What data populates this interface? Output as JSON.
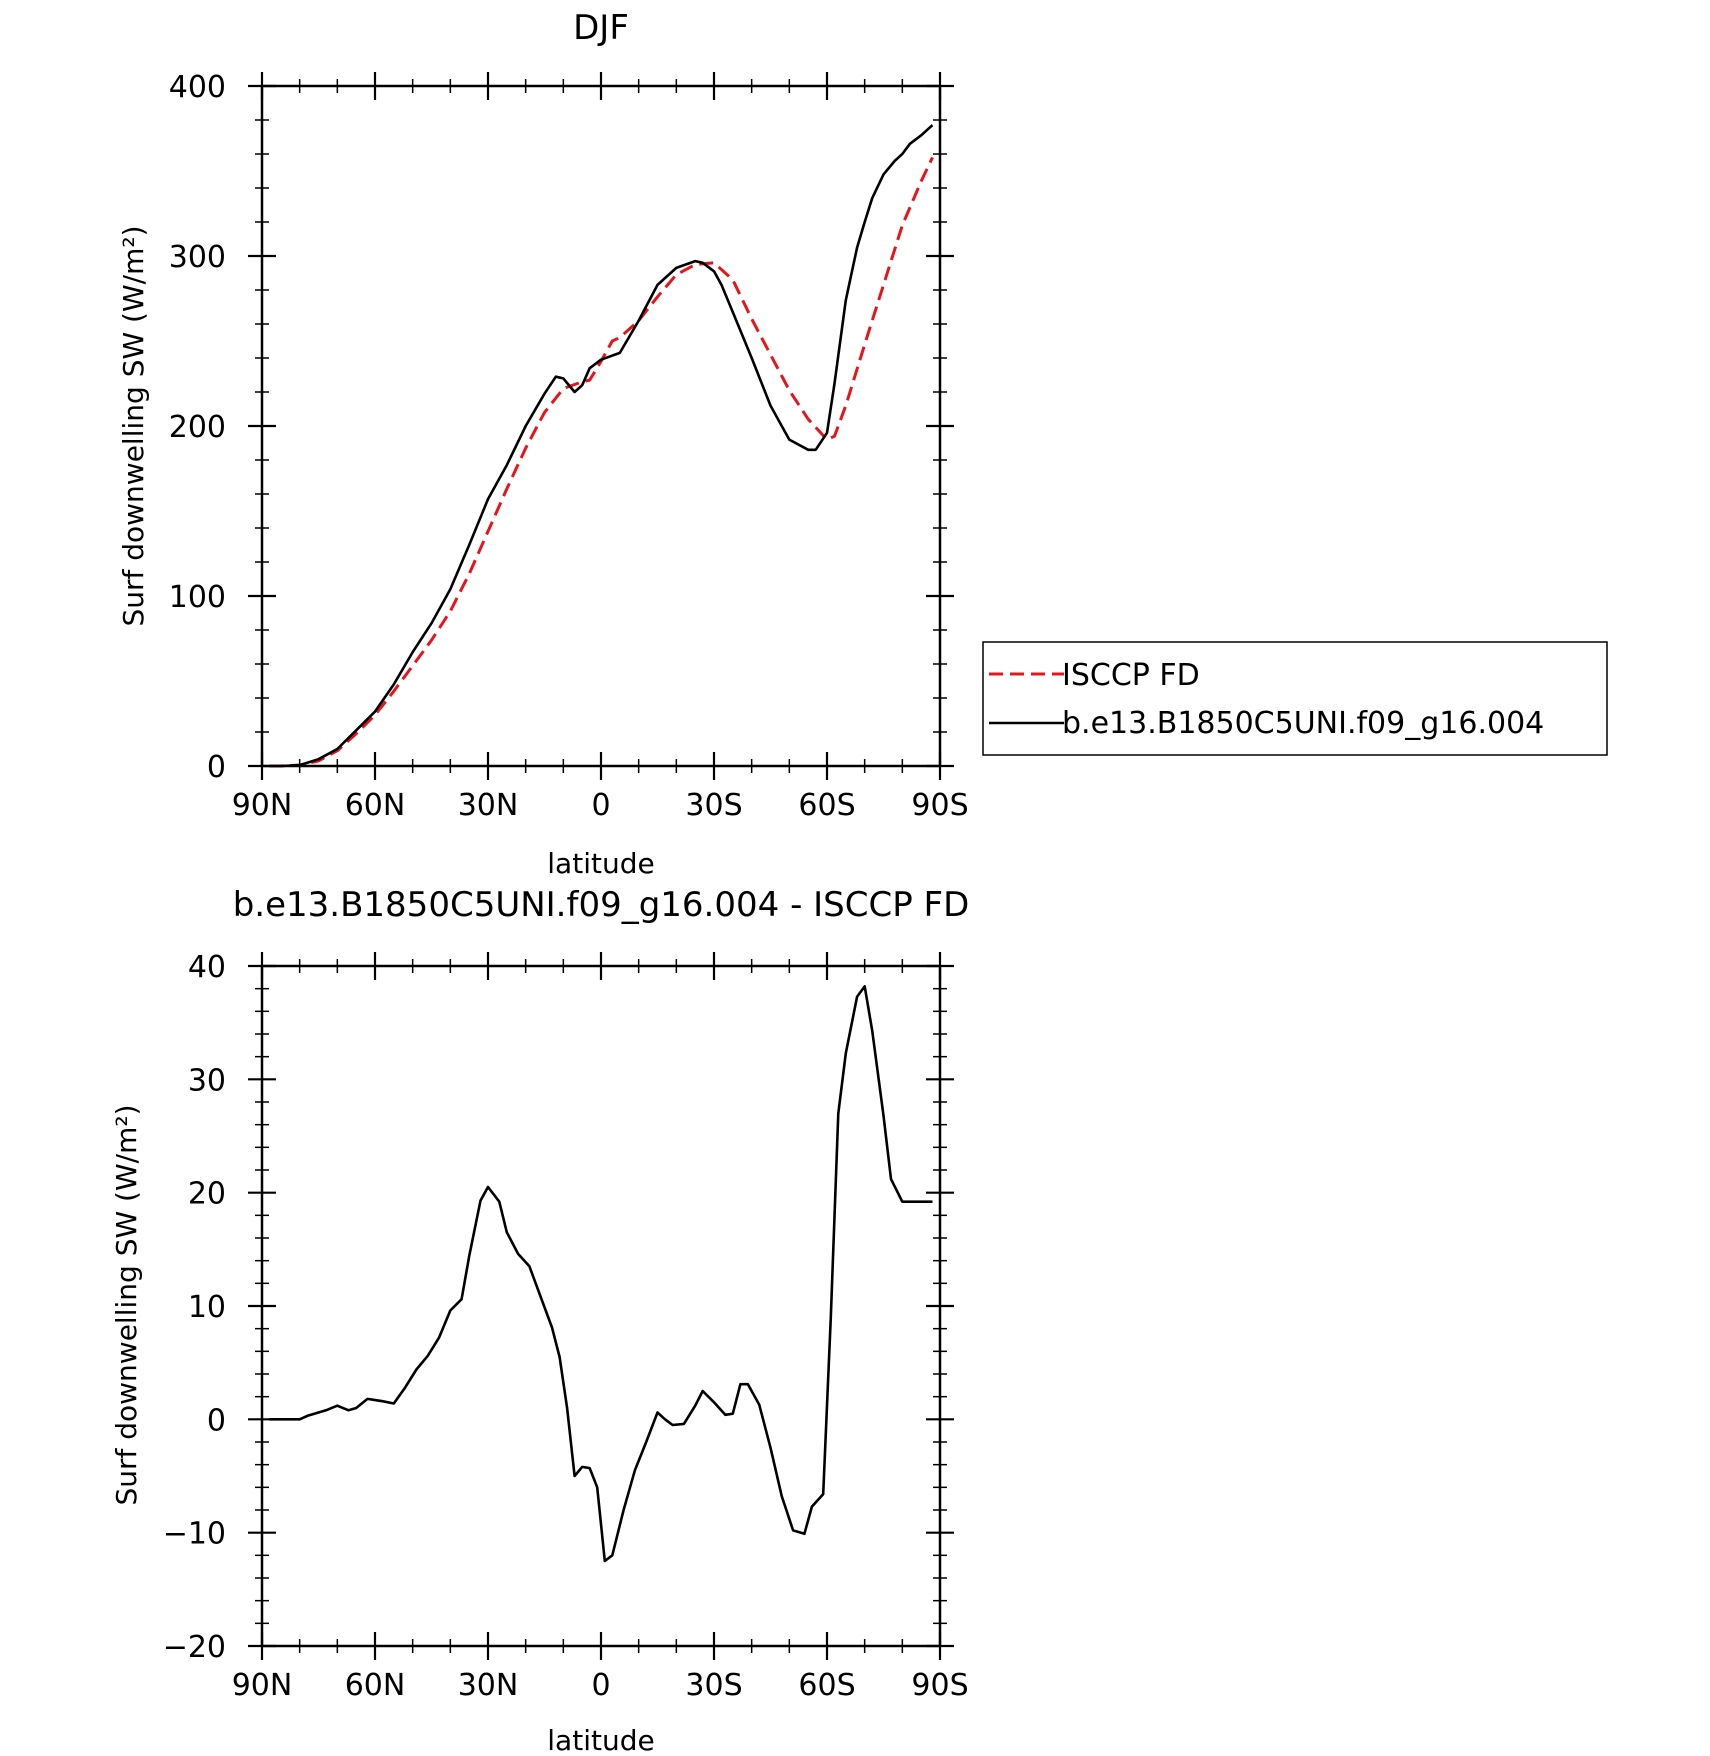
{
  "chart_data": [
    {
      "type": "line",
      "title": "DJF",
      "xlabel": "latitude",
      "ylabel": "Surf downwelling SW (W/m²)",
      "xlim": [
        90,
        -90
      ],
      "ylim": [
        0,
        400
      ],
      "x_ticks": [
        90,
        60,
        30,
        0,
        -30,
        -60,
        -90
      ],
      "x_tick_labels": [
        "90N",
        "60N",
        "30N",
        "0",
        "30S",
        "60S",
        "90S"
      ],
      "y_ticks": [
        0,
        100,
        200,
        300,
        400
      ],
      "y_tick_labels": [
        "0",
        "100",
        "200",
        "300",
        "400"
      ],
      "grid": false,
      "legend": {
        "position": "right",
        "entries": [
          "ISCCP FD",
          "b.e13.B1850C5UNI.f09_g16.004"
        ]
      },
      "series": [
        {
          "name": "ISCCP FD",
          "color": "#e8141b",
          "style": "dashed",
          "x": [
            88,
            85,
            80,
            75,
            70,
            65,
            60,
            55,
            50,
            45,
            40,
            35,
            30,
            25,
            20,
            15,
            10,
            5,
            3,
            0,
            -3,
            -5,
            -10,
            -15,
            -20,
            -25,
            -30,
            -35,
            -40,
            -45,
            -50,
            -55,
            -60,
            -62,
            -65,
            -70,
            -75,
            -80,
            -85,
            -88
          ],
          "y": [
            0,
            0,
            0.5,
            3,
            9,
            19,
            30,
            44,
            59,
            74,
            91,
            113,
            138,
            163,
            187,
            208,
            222,
            226,
            227,
            238,
            250,
            252,
            262,
            276,
            289,
            295,
            296,
            286,
            263,
            242,
            221,
            204,
            192,
            194,
            212,
            248,
            283,
            318,
            344,
            358
          ]
        },
        {
          "name": "b.e13.B1850C5UNI.f09_g16.004",
          "color": "#000000",
          "style": "solid",
          "x": [
            88,
            85,
            80,
            75,
            70,
            65,
            60,
            55,
            50,
            45,
            40,
            35,
            30,
            25,
            20,
            15,
            12,
            10,
            7,
            5,
            3,
            0,
            -5,
            -10,
            -15,
            -20,
            -25,
            -27,
            -30,
            -32,
            -35,
            -40,
            -45,
            -50,
            -55,
            -57,
            -60,
            -62,
            -65,
            -68,
            -70,
            -72,
            -75,
            -78,
            -80,
            -82,
            -85,
            -88
          ],
          "y": [
            0,
            0,
            0.5,
            4,
            10,
            21,
            32,
            48,
            67,
            84,
            104,
            130,
            157,
            177,
            200,
            219,
            229,
            228,
            220,
            224,
            234,
            239,
            243,
            262,
            283,
            293,
            297,
            296,
            291,
            283,
            267,
            240,
            212,
            192,
            186,
            186,
            196,
            225,
            274,
            305,
            320,
            334,
            348,
            356,
            360,
            366,
            371,
            377
          ]
        }
      ]
    },
    {
      "type": "line",
      "title": "b.e13.B1850C5UNI.f09_g16.004 - ISCCP FD",
      "xlabel": "latitude",
      "ylabel": "Surf downwelling SW (W/m²)",
      "xlim": [
        90,
        -90
      ],
      "ylim": [
        -20,
        40
      ],
      "x_ticks": [
        90,
        60,
        30,
        0,
        -30,
        -60,
        -90
      ],
      "x_tick_labels": [
        "90N",
        "60N",
        "30N",
        "0",
        "30S",
        "60S",
        "90S"
      ],
      "y_ticks": [
        -20,
        -10,
        0,
        10,
        20,
        30,
        40
      ],
      "y_tick_labels": [
        "−20",
        "−10",
        "0",
        "10",
        "20",
        "30",
        "40"
      ],
      "grid": false,
      "series": [
        {
          "color": "#000000",
          "style": "solid",
          "x": [
            88,
            85,
            82,
            80,
            78,
            75,
            73,
            70,
            67,
            65,
            62,
            58,
            55,
            52,
            49,
            46,
            43,
            40,
            37,
            35,
            32,
            30,
            27,
            25,
            22,
            19,
            16,
            13,
            11,
            9,
            7,
            5,
            3,
            1,
            -1,
            -3,
            -6,
            -9,
            -12,
            -15,
            -17,
            -19,
            -22,
            -25,
            -27,
            -30,
            -33,
            -35,
            -37,
            -39,
            -42,
            -45,
            -48,
            -51,
            -54,
            -56,
            -59,
            -61,
            -63,
            -65,
            -68,
            -70,
            -72,
            -75,
            -77,
            -80,
            -82,
            -85,
            -88
          ],
          "y": [
            0,
            0,
            0,
            0,
            0.3,
            0.6,
            0.8,
            1.2,
            0.8,
            1,
            1.8,
            1.6,
            1.4,
            2.8,
            4.4,
            5.6,
            7.2,
            9.6,
            10.6,
            14.4,
            19.3,
            20.5,
            19.2,
            16.5,
            14.6,
            13.5,
            10.8,
            8.1,
            5.5,
            1,
            -5,
            -4.2,
            -4.3,
            -6,
            -12.5,
            -12,
            -8,
            -4.5,
            -2,
            0.6,
            0,
            -0.5,
            -0.4,
            1.2,
            2.5,
            1.5,
            0.4,
            0.5,
            3.1,
            3.1,
            1.3,
            -2.5,
            -6.8,
            -9.8,
            -10.1,
            -7.7,
            -6.6,
            9,
            27,
            32.3,
            37.3,
            38.2,
            34.3,
            26.8,
            21.2,
            19.2,
            19.2,
            19.2,
            19.2
          ]
        }
      ]
    }
  ]
}
